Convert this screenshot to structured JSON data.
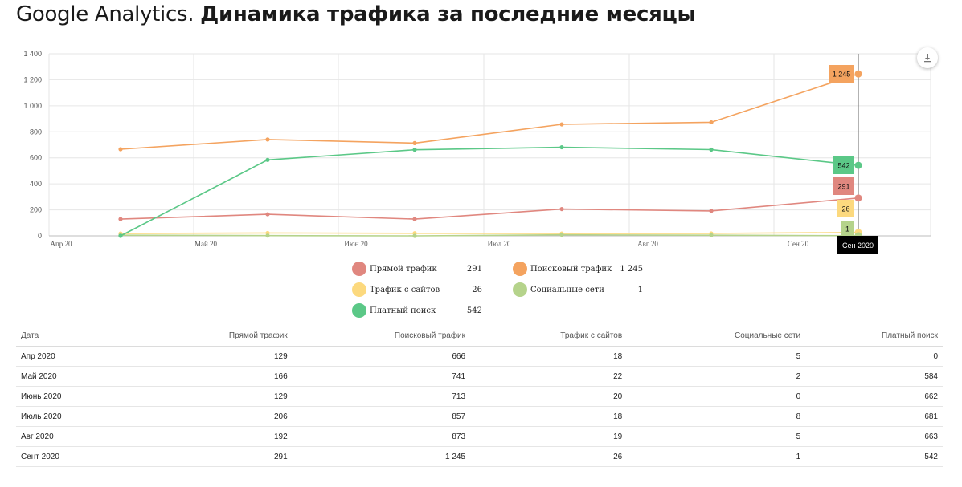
{
  "page": {
    "title_light": "Google Analytics.",
    "title_bold": "Динамика трафика за последние месяцы"
  },
  "toolbar": {
    "download_icon": "download-icon"
  },
  "chart_data": {
    "type": "line",
    "categories": [
      "Апр 2020",
      "Май 2020",
      "Июнь 2020",
      "Июль 2020",
      "Авг 2020",
      "Сент 2020"
    ],
    "x_axis_labels": [
      "Апр 20",
      "Май 20",
      "Июн 20",
      "Июл 20",
      "Авг 20",
      "Сен 20"
    ],
    "ylim": [
      0,
      1400
    ],
    "yticks": [
      0,
      200,
      400,
      600,
      800,
      1000,
      1200,
      1400
    ],
    "ytick_labels": [
      "0",
      "200",
      "400",
      "600",
      "800",
      "1 000",
      "1 200",
      "1 400"
    ],
    "grid": true,
    "tooltip": {
      "label": "Сен 2020",
      "values": [
        "1 245",
        "542",
        "291",
        "26",
        "1"
      ]
    },
    "series": [
      {
        "name": "Прямой трафик",
        "color": "#e0877f",
        "values": [
          129,
          166,
          129,
          206,
          192,
          291
        ]
      },
      {
        "name": "Поисковый трафик",
        "color": "#f4a35f",
        "values": [
          666,
          741,
          713,
          857,
          873,
          1245
        ]
      },
      {
        "name": "Трафик с сайтов",
        "color": "#fcd97e",
        "values": [
          18,
          22,
          20,
          18,
          19,
          26
        ]
      },
      {
        "name": "Социальные сети",
        "color": "#b5d38b",
        "values": [
          5,
          2,
          0,
          8,
          5,
          1
        ]
      },
      {
        "name": "Платный поиск",
        "color": "#5bc887",
        "values": [
          0,
          584,
          662,
          681,
          663,
          542
        ]
      }
    ]
  },
  "legend": {
    "items": [
      {
        "label": "Прямой трафик",
        "value": "291",
        "color": "#e0877f"
      },
      {
        "label": "Поисковый трафик",
        "value": "1 245",
        "color": "#f4a35f"
      },
      {
        "label": "Трафик с сайтов",
        "value": "26",
        "color": "#fcd97e"
      },
      {
        "label": "Социальные сети",
        "value": "1",
        "color": "#b5d38b"
      },
      {
        "label": "Платный поиск",
        "value": "542",
        "color": "#5bc887"
      }
    ]
  },
  "table": {
    "headers": [
      "Дата",
      "Прямой трафик",
      "Поисковый трафик",
      "Трафик с сайтов",
      "Социальные сети",
      "Платный поиск"
    ],
    "rows": [
      [
        "Апр 2020",
        "129",
        "666",
        "18",
        "5",
        "0"
      ],
      [
        "Май 2020",
        "166",
        "741",
        "22",
        "2",
        "584"
      ],
      [
        "Июнь 2020",
        "129",
        "713",
        "20",
        "0",
        "662"
      ],
      [
        "Июль 2020",
        "206",
        "857",
        "18",
        "8",
        "681"
      ],
      [
        "Авг 2020",
        "192",
        "873",
        "19",
        "5",
        "663"
      ],
      [
        "Сент 2020",
        "291",
        "1 245",
        "26",
        "1",
        "542"
      ]
    ]
  }
}
